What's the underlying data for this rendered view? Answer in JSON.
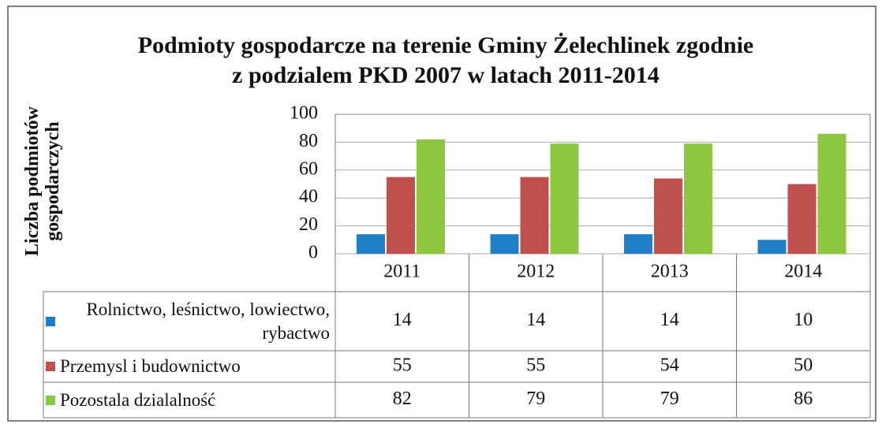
{
  "chart_data": {
    "type": "bar",
    "title": "Podmioty gospodarcze na terenie Gminy Żelechlinek zgodnie z podzialem PKD 2007 w latach 2011-2014",
    "y_label": "Liczba podmiotów gospodarczych",
    "categories": [
      "2011",
      "2012",
      "2013",
      "2014"
    ],
    "series": [
      {
        "name": "Rolnictwo, leśnictwo, lowiectwo, rybactwo",
        "color": "#1f7fc6",
        "values": [
          14,
          14,
          14,
          10
        ]
      },
      {
        "name": "Przemysl i budownictwo",
        "color": "#c0504d",
        "values": [
          55,
          55,
          54,
          50
        ]
      },
      {
        "name": "Pozostala dzialalność",
        "color": "#8dc63f",
        "values": [
          82,
          79,
          79,
          86
        ]
      }
    ],
    "ylim": [
      0,
      100
    ],
    "yticks": [
      0,
      20,
      40,
      60,
      80,
      100
    ],
    "grid": true,
    "data_table": true
  }
}
